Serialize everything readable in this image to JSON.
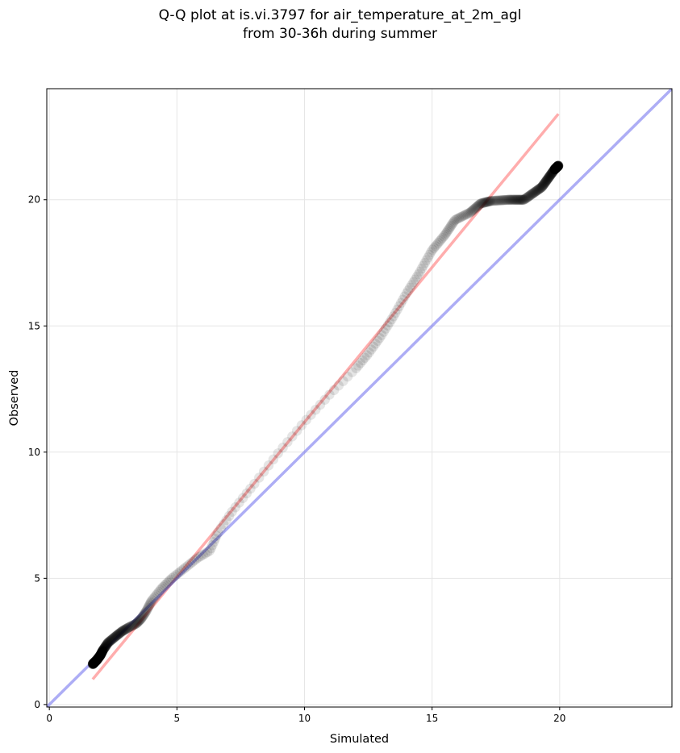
{
  "chart_data": {
    "type": "scatter",
    "title_lines": [
      "Q-Q plot at is.vi.3797 for air_temperature_at_2m_agl",
      "from 30-36h during summer"
    ],
    "xlabel": "Simulated",
    "ylabel": "Observed",
    "xlim": [
      -0.1,
      24.4
    ],
    "ylim": [
      -0.1,
      24.4
    ],
    "x_ticks": [
      0,
      5,
      10,
      15,
      20
    ],
    "y_ticks": [
      0,
      5,
      10,
      15,
      20
    ],
    "grid": true,
    "colors": {
      "points": "#000000",
      "fit_line": "#ff7777",
      "identity_line": "#7777ee",
      "grid": "#e6e6e6"
    },
    "lines": [
      {
        "kind": "fit",
        "x": [
          1.7,
          19.95
        ],
        "y": [
          1.0,
          23.4
        ]
      },
      {
        "kind": "identity",
        "x": [
          -0.1,
          24.4
        ],
        "y": [
          -0.1,
          24.4
        ]
      }
    ],
    "quantile_knots": {
      "x": [
        1.7,
        1.85,
        2.0,
        2.1,
        2.3,
        2.6,
        2.85,
        3.1,
        3.4,
        3.6,
        3.8,
        4.0,
        4.4,
        4.8,
        5.3,
        5.8,
        6.3,
        6.6,
        7.2,
        8.0,
        9.0,
        10.0,
        11.0,
        12.0,
        12.5,
        13.0,
        13.5,
        14.0,
        14.5,
        15.0,
        15.5,
        15.9,
        16.5,
        16.9,
        17.3,
        18.0,
        18.6,
        19.3,
        19.8,
        19.95
      ],
      "y": [
        1.6,
        1.75,
        1.95,
        2.15,
        2.45,
        2.7,
        2.9,
        3.05,
        3.2,
        3.4,
        3.7,
        4.1,
        4.6,
        5.0,
        5.4,
        5.8,
        6.1,
        6.8,
        7.7,
        8.7,
        10.0,
        11.2,
        12.3,
        13.3,
        13.9,
        14.6,
        15.4,
        16.3,
        17.1,
        18.0,
        18.6,
        19.2,
        19.5,
        19.85,
        19.95,
        20.0,
        20.0,
        20.5,
        21.2,
        21.35
      ]
    },
    "n_points": 700
  }
}
